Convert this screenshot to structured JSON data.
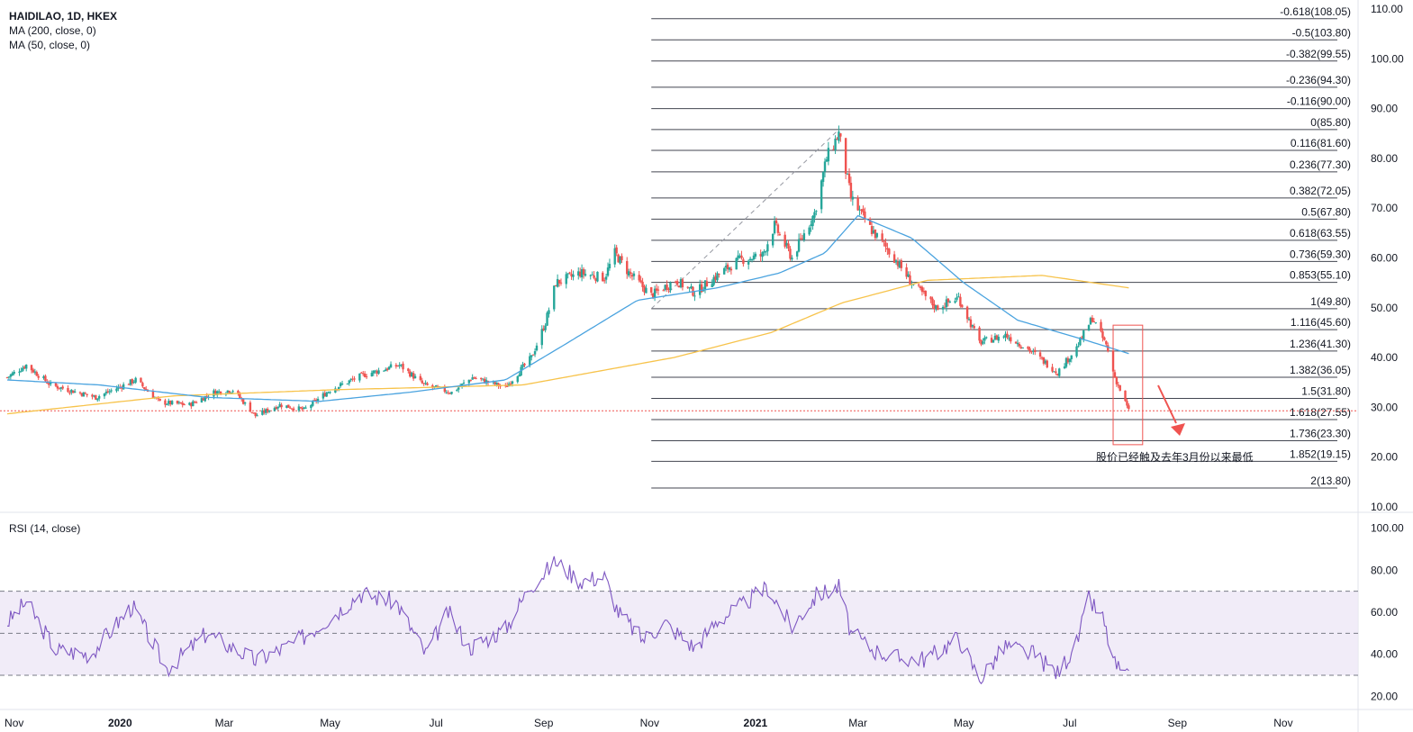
{
  "legend": {
    "symbol": "HAIDILAO, 1D, HKEX",
    "ma200": "MA (200, close, 0)",
    "ma50": "MA (50, close, 0)",
    "rsi": "RSI (14, close)"
  },
  "annotation": "股价已经触及去年3月份以来最低",
  "colors": {
    "up": "#26a69a",
    "down": "#ef5350",
    "ma200": "#f7c34b",
    "ma50": "#4aa3df",
    "rsi": "#7e57c2",
    "rsi_band": "#ede7f6",
    "fib": "#434651",
    "current_price": "#ef5350",
    "highlight": "#ef5350"
  },
  "chart_data": [
    {
      "type": "candlestick",
      "title": "",
      "ylim": [
        10,
        110
      ],
      "y_ticks": [
        "110.00",
        "100.00",
        "90.00",
        "80.00",
        "70.00",
        "60.00",
        "50.00",
        "40.00",
        "30.00",
        "20.00",
        "10.00"
      ],
      "x_ticks": [
        "Nov",
        "2020",
        "Mar",
        "May",
        "Jul",
        "Sep",
        "Nov",
        "2021",
        "Mar",
        "May",
        "Jul",
        "Sep",
        "Nov"
      ],
      "x_range": [
        "2019-10-28",
        "2021-11-28"
      ],
      "current_price": 29.3,
      "close_anchors": [
        {
          "date": "2019-10-28",
          "close": 36.0
        },
        {
          "date": "2019-11-08",
          "close": 38.5
        },
        {
          "date": "2019-11-22",
          "close": 34.5
        },
        {
          "date": "2019-12-18",
          "close": 32.0
        },
        {
          "date": "2020-01-10",
          "close": 35.5
        },
        {
          "date": "2020-01-24",
          "close": 31.0
        },
        {
          "date": "2020-02-10",
          "close": 30.5
        },
        {
          "date": "2020-02-24",
          "close": 33.0
        },
        {
          "date": "2020-03-06",
          "close": 33.5
        },
        {
          "date": "2020-03-19",
          "close": 28.3
        },
        {
          "date": "2020-04-02",
          "close": 30.5
        },
        {
          "date": "2020-04-16",
          "close": 29.5
        },
        {
          "date": "2020-05-01",
          "close": 33.5
        },
        {
          "date": "2020-05-20",
          "close": 36.5
        },
        {
          "date": "2020-06-10",
          "close": 38.5
        },
        {
          "date": "2020-06-24",
          "close": 34.5
        },
        {
          "date": "2020-07-10",
          "close": 33.0
        },
        {
          "date": "2020-07-22",
          "close": 36.0
        },
        {
          "date": "2020-08-10",
          "close": 34.0
        },
        {
          "date": "2020-08-25",
          "close": 40.0
        },
        {
          "date": "2020-09-02",
          "close": 47.0
        },
        {
          "date": "2020-09-08",
          "close": 55.0
        },
        {
          "date": "2020-09-22",
          "close": 57.0
        },
        {
          "date": "2020-10-06",
          "close": 56.0
        },
        {
          "date": "2020-10-12",
          "close": 61.0
        },
        {
          "date": "2020-10-20",
          "close": 57.0
        },
        {
          "date": "2020-11-02",
          "close": 52.5
        },
        {
          "date": "2020-11-16",
          "close": 55.5
        },
        {
          "date": "2020-11-27",
          "close": 53.0
        },
        {
          "date": "2020-12-10",
          "close": 56.5
        },
        {
          "date": "2020-12-22",
          "close": 59.5
        },
        {
          "date": "2021-01-05",
          "close": 60.5
        },
        {
          "date": "2021-01-12",
          "close": 66.5
        },
        {
          "date": "2021-01-22",
          "close": 60.0
        },
        {
          "date": "2021-02-04",
          "close": 69.0
        },
        {
          "date": "2021-02-11",
          "close": 80.0
        },
        {
          "date": "2021-02-18",
          "close": 85.0
        },
        {
          "date": "2021-02-25",
          "close": 72.0
        },
        {
          "date": "2021-03-08",
          "close": 66.0
        },
        {
          "date": "2021-03-22",
          "close": 60.0
        },
        {
          "date": "2021-04-01",
          "close": 55.0
        },
        {
          "date": "2021-04-15",
          "close": 50.0
        },
        {
          "date": "2021-04-28",
          "close": 52.0
        },
        {
          "date": "2021-05-10",
          "close": 43.0
        },
        {
          "date": "2021-05-25",
          "close": 44.5
        },
        {
          "date": "2021-06-08",
          "close": 41.5
        },
        {
          "date": "2021-06-24",
          "close": 37.0
        },
        {
          "date": "2021-07-05",
          "close": 42.0
        },
        {
          "date": "2021-07-14",
          "close": 48.0
        },
        {
          "date": "2021-07-22",
          "close": 42.5
        },
        {
          "date": "2021-07-27",
          "close": 36.0
        },
        {
          "date": "2021-08-04",
          "close": 29.3
        }
      ],
      "ma50_anchors": [
        {
          "date": "2019-10-28",
          "value": 35.5
        },
        {
          "date": "2019-12-20",
          "value": 34.5
        },
        {
          "date": "2020-02-20",
          "value": 32.0
        },
        {
          "date": "2020-04-25",
          "value": 31.2
        },
        {
          "date": "2020-06-15",
          "value": 33.0
        },
        {
          "date": "2020-08-10",
          "value": 35.5
        },
        {
          "date": "2020-09-15",
          "value": 43.0
        },
        {
          "date": "2020-10-25",
          "value": 51.5
        },
        {
          "date": "2020-12-10",
          "value": 54.0
        },
        {
          "date": "2021-01-15",
          "value": 57.0
        },
        {
          "date": "2021-02-10",
          "value": 61.0
        },
        {
          "date": "2021-03-01",
          "value": 68.5
        },
        {
          "date": "2021-04-01",
          "value": 64.0
        },
        {
          "date": "2021-05-01",
          "value": 55.0
        },
        {
          "date": "2021-06-01",
          "value": 47.5
        },
        {
          "date": "2021-07-10",
          "value": 43.5
        },
        {
          "date": "2021-08-04",
          "value": 40.8
        }
      ],
      "ma200_anchors": [
        {
          "date": "2019-10-28",
          "value": 28.7
        },
        {
          "date": "2020-02-01",
          "value": 32.3
        },
        {
          "date": "2020-05-01",
          "value": 33.5
        },
        {
          "date": "2020-08-20",
          "value": 34.5
        },
        {
          "date": "2020-11-15",
          "value": 40.0
        },
        {
          "date": "2021-01-10",
          "value": 45.0
        },
        {
          "date": "2021-02-20",
          "value": 51.0
        },
        {
          "date": "2021-04-10",
          "value": 55.5
        },
        {
          "date": "2021-06-15",
          "value": 56.5
        },
        {
          "date": "2021-08-04",
          "value": 54.0
        }
      ],
      "fibonacci": {
        "start": "2020-11-02",
        "end": "2021-11-28",
        "trend_from": {
          "date": "2020-11-02",
          "value": 49.8
        },
        "trend_to": {
          "date": "2021-02-18",
          "value": 85.8
        },
        "levels": [
          {
            "label": "-0.618(108.05)",
            "value": 108.05
          },
          {
            "label": "-0.5(103.80)",
            "value": 103.8
          },
          {
            "label": "-0.382(99.55)",
            "value": 99.55
          },
          {
            "label": "-0.236(94.30)",
            "value": 94.3
          },
          {
            "label": "-0.116(90.00)",
            "value": 90.0
          },
          {
            "label": "0(85.80)",
            "value": 85.8
          },
          {
            "label": "0.116(81.60)",
            "value": 81.6
          },
          {
            "label": "0.236(77.30)",
            "value": 77.3
          },
          {
            "label": "0.382(72.05)",
            "value": 72.05
          },
          {
            "label": "0.5(67.80)",
            "value": 67.8
          },
          {
            "label": "0.618(63.55)",
            "value": 63.55
          },
          {
            "label": "0.736(59.30)",
            "value": 59.3
          },
          {
            "label": "0.853(55.10)",
            "value": 55.1
          },
          {
            "label": "1(49.80)",
            "value": 49.8
          },
          {
            "label": "1.116(45.60)",
            "value": 45.6
          },
          {
            "label": "1.236(41.30)",
            "value": 41.3
          },
          {
            "label": "1.382(36.05)",
            "value": 36.05
          },
          {
            "label": "1.5(31.80)",
            "value": 31.8
          },
          {
            "label": "1.618(27.55)",
            "value": 27.55
          },
          {
            "label": "1.736(23.30)",
            "value": 23.3
          },
          {
            "label": "1.852(19.15)",
            "value": 19.15
          },
          {
            "label": "2(13.80)",
            "value": 13.8
          }
        ]
      },
      "highlight_box": {
        "from": "2021-07-26",
        "to": "2021-08-12",
        "top": 46.5,
        "bottom": 22.5
      }
    },
    {
      "type": "line",
      "title": "",
      "ylim": [
        15,
        105
      ],
      "y_ticks": [
        "100.00",
        "80.00",
        "60.00",
        "40.00",
        "20.00"
      ],
      "bands": [
        30,
        50,
        70
      ],
      "anchors": [
        {
          "date": "2019-10-28",
          "value": 55
        },
        {
          "date": "2019-11-08",
          "value": 65
        },
        {
          "date": "2019-11-25",
          "value": 42
        },
        {
          "date": "2019-12-15",
          "value": 40
        },
        {
          "date": "2020-01-08",
          "value": 63
        },
        {
          "date": "2020-01-28",
          "value": 33
        },
        {
          "date": "2020-02-20",
          "value": 50
        },
        {
          "date": "2020-03-19",
          "value": 37
        },
        {
          "date": "2020-04-10",
          "value": 45
        },
        {
          "date": "2020-05-05",
          "value": 60
        },
        {
          "date": "2020-05-18",
          "value": 69
        },
        {
          "date": "2020-06-08",
          "value": 65
        },
        {
          "date": "2020-06-25",
          "value": 40
        },
        {
          "date": "2020-07-08",
          "value": 60
        },
        {
          "date": "2020-07-20",
          "value": 43
        },
        {
          "date": "2020-08-10",
          "value": 52
        },
        {
          "date": "2020-08-24",
          "value": 72
        },
        {
          "date": "2020-09-08",
          "value": 84
        },
        {
          "date": "2020-09-22",
          "value": 75
        },
        {
          "date": "2020-10-06",
          "value": 77
        },
        {
          "date": "2020-10-14",
          "value": 60
        },
        {
          "date": "2020-10-28",
          "value": 47
        },
        {
          "date": "2020-11-10",
          "value": 55
        },
        {
          "date": "2020-11-27",
          "value": 43
        },
        {
          "date": "2020-12-10",
          "value": 56
        },
        {
          "date": "2020-12-22",
          "value": 62
        },
        {
          "date": "2021-01-08",
          "value": 72
        },
        {
          "date": "2021-01-22",
          "value": 53
        },
        {
          "date": "2021-02-05",
          "value": 68
        },
        {
          "date": "2021-02-18",
          "value": 72
        },
        {
          "date": "2021-02-25",
          "value": 50
        },
        {
          "date": "2021-03-10",
          "value": 42
        },
        {
          "date": "2021-03-25",
          "value": 38
        },
        {
          "date": "2021-04-10",
          "value": 38
        },
        {
          "date": "2021-04-28",
          "value": 48
        },
        {
          "date": "2021-05-10",
          "value": 28
        },
        {
          "date": "2021-05-25",
          "value": 44
        },
        {
          "date": "2021-06-10",
          "value": 40
        },
        {
          "date": "2021-06-24",
          "value": 31
        },
        {
          "date": "2021-07-05",
          "value": 45
        },
        {
          "date": "2021-07-12",
          "value": 66
        },
        {
          "date": "2021-07-20",
          "value": 57
        },
        {
          "date": "2021-07-27",
          "value": 35
        },
        {
          "date": "2021-08-04",
          "value": 28
        }
      ]
    }
  ]
}
